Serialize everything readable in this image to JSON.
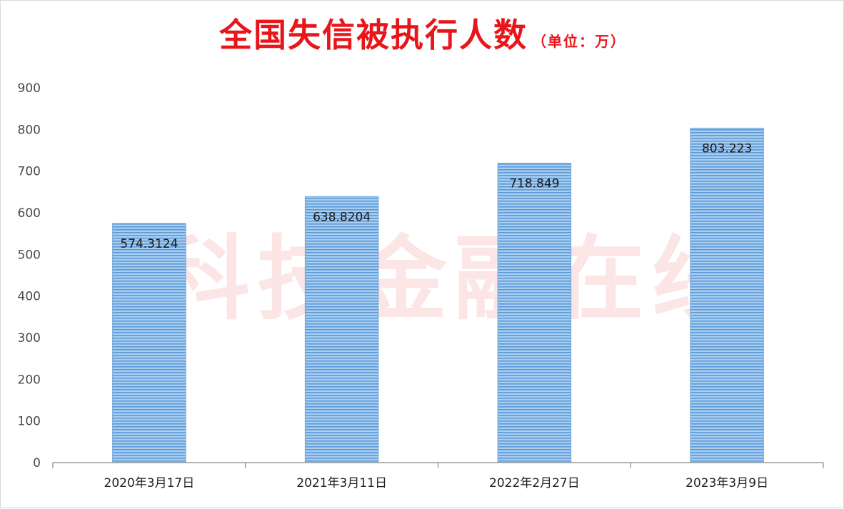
{
  "chart_data": {
    "type": "bar",
    "title": "全国失信被执行人数",
    "subtitle": "（单位：万）",
    "xlabel": "",
    "ylabel": "",
    "categories": [
      "2020年3月17日",
      "2021年3月11日",
      "2022年2月27日",
      "2023年3月9日"
    ],
    "values": [
      574.3124,
      638.8204,
      718.849,
      803.223
    ],
    "data_labels": [
      "574.3124",
      "638.8204",
      "718.849",
      "803.223"
    ],
    "ylim": [
      0,
      900
    ],
    "yticks": [
      0,
      100,
      200,
      300,
      400,
      500,
      600,
      700,
      800,
      900
    ],
    "grid": false,
    "legend": "none",
    "watermark": "科技金融在线",
    "colors": {
      "title": "#e8161b",
      "bar_fill": "#a9cdef",
      "bar_stripe": "#5a9ad9",
      "bar_edge": "#6fa8dc",
      "axis": "#888888"
    }
  }
}
